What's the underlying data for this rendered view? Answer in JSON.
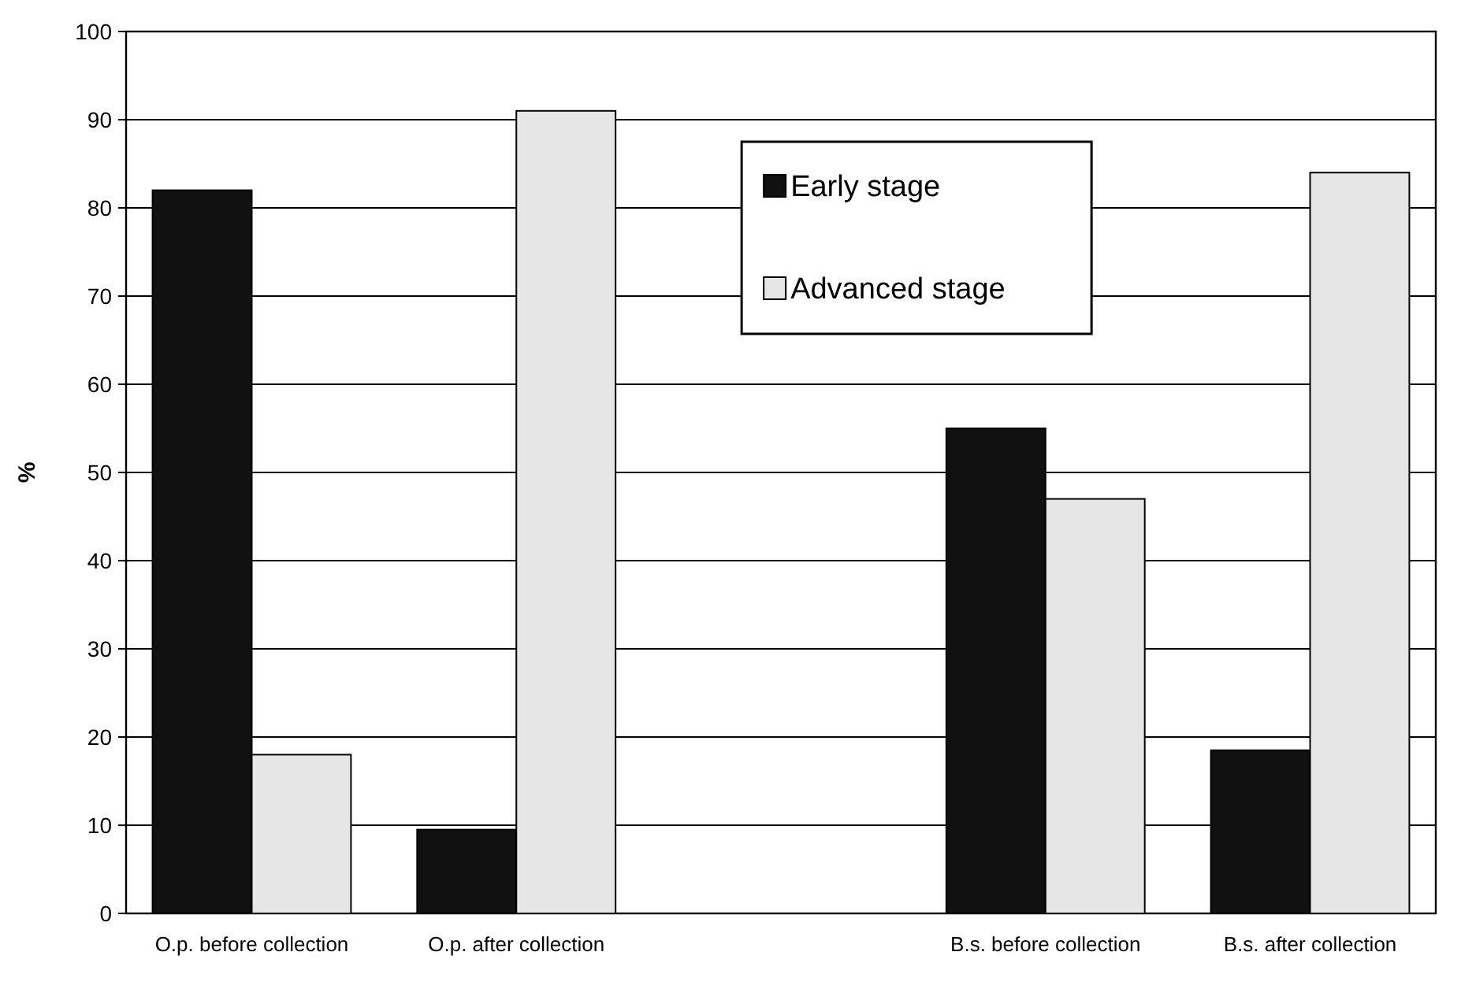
{
  "chart_data": {
    "type": "bar",
    "ylabel": "%",
    "categories": [
      "O.p. before collection",
      "O.p. after collection",
      null,
      "B.s. before collection",
      "B.s. after collection"
    ],
    "series": [
      {
        "name": "Early stage",
        "color": "#111111",
        "values": [
          82,
          9.5,
          null,
          55,
          18.5
        ]
      },
      {
        "name": "Advanced stage",
        "color": "#e6e6e6",
        "values": [
          18,
          91,
          null,
          47,
          84
        ]
      }
    ],
    "ylim": [
      0,
      100
    ],
    "yticks": [
      0,
      10,
      20,
      30,
      40,
      50,
      60,
      70,
      80,
      90,
      100
    ],
    "grid": "y",
    "legend": "top"
  }
}
